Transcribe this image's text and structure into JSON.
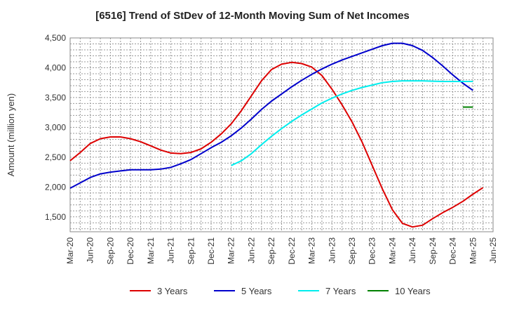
{
  "chart_data": {
    "type": "line",
    "title": "[6516]  Trend of StDev of 12-Month Moving Sum of Net Incomes",
    "xlabel": "",
    "ylabel": "Amount (million yen)",
    "ylim": [
      1250,
      4500
    ],
    "grid": true,
    "legend_position": "bottom",
    "x_ticks": [
      "Mar-20",
      "Jun-20",
      "Sep-20",
      "Dec-20",
      "Mar-21",
      "Jun-21",
      "Sep-21",
      "Dec-21",
      "Mar-22",
      "Jun-22",
      "Sep-22",
      "Dec-22",
      "Mar-23",
      "Jun-23",
      "Sep-23",
      "Dec-23",
      "Mar-24",
      "Jun-24",
      "Sep-24",
      "Dec-24",
      "Mar-25",
      "Jun-25"
    ],
    "y_ticks": [
      "1,500",
      "2,000",
      "2,500",
      "3,000",
      "3,500",
      "4,000",
      "4,500"
    ],
    "y_tick_values": [
      1500,
      2000,
      2500,
      3000,
      3500,
      4000,
      4500
    ],
    "series": [
      {
        "name": "3 Years",
        "color": "#dd0000",
        "start_index": 0,
        "values": [
          2440,
          2580,
          2730,
          2810,
          2840,
          2840,
          2810,
          2760,
          2690,
          2620,
          2570,
          2560,
          2580,
          2640,
          2750,
          2890,
          3060,
          3280,
          3530,
          3780,
          3970,
          4060,
          4090,
          4070,
          4010,
          3870,
          3640,
          3380,
          3090,
          2750,
          2360,
          1970,
          1620,
          1390,
          1330,
          1360,
          1470,
          1570,
          1660,
          1760,
          1880,
          1990
        ]
      },
      {
        "name": "5 Years",
        "color": "#0000cc",
        "start_index": 0,
        "values": [
          1980,
          2070,
          2160,
          2220,
          2250,
          2270,
          2290,
          2290,
          2290,
          2300,
          2330,
          2390,
          2460,
          2560,
          2660,
          2750,
          2860,
          2990,
          3140,
          3300,
          3440,
          3560,
          3680,
          3790,
          3890,
          3980,
          4060,
          4130,
          4190,
          4250,
          4310,
          4370,
          4410,
          4410,
          4370,
          4290,
          4170,
          4030,
          3880,
          3740,
          3620
        ]
      },
      {
        "name": "7 Years",
        "color": "#00eeee",
        "start_index": 16,
        "values": [
          2360,
          2440,
          2560,
          2710,
          2850,
          2980,
          3100,
          3210,
          3310,
          3410,
          3490,
          3560,
          3620,
          3670,
          3710,
          3750,
          3770,
          3780,
          3780,
          3780,
          3775,
          3770,
          3770,
          3770,
          3770
        ]
      },
      {
        "name": "10 Years",
        "color": "#008000",
        "start_index": 39,
        "values": [
          3340,
          3340
        ]
      }
    ]
  }
}
